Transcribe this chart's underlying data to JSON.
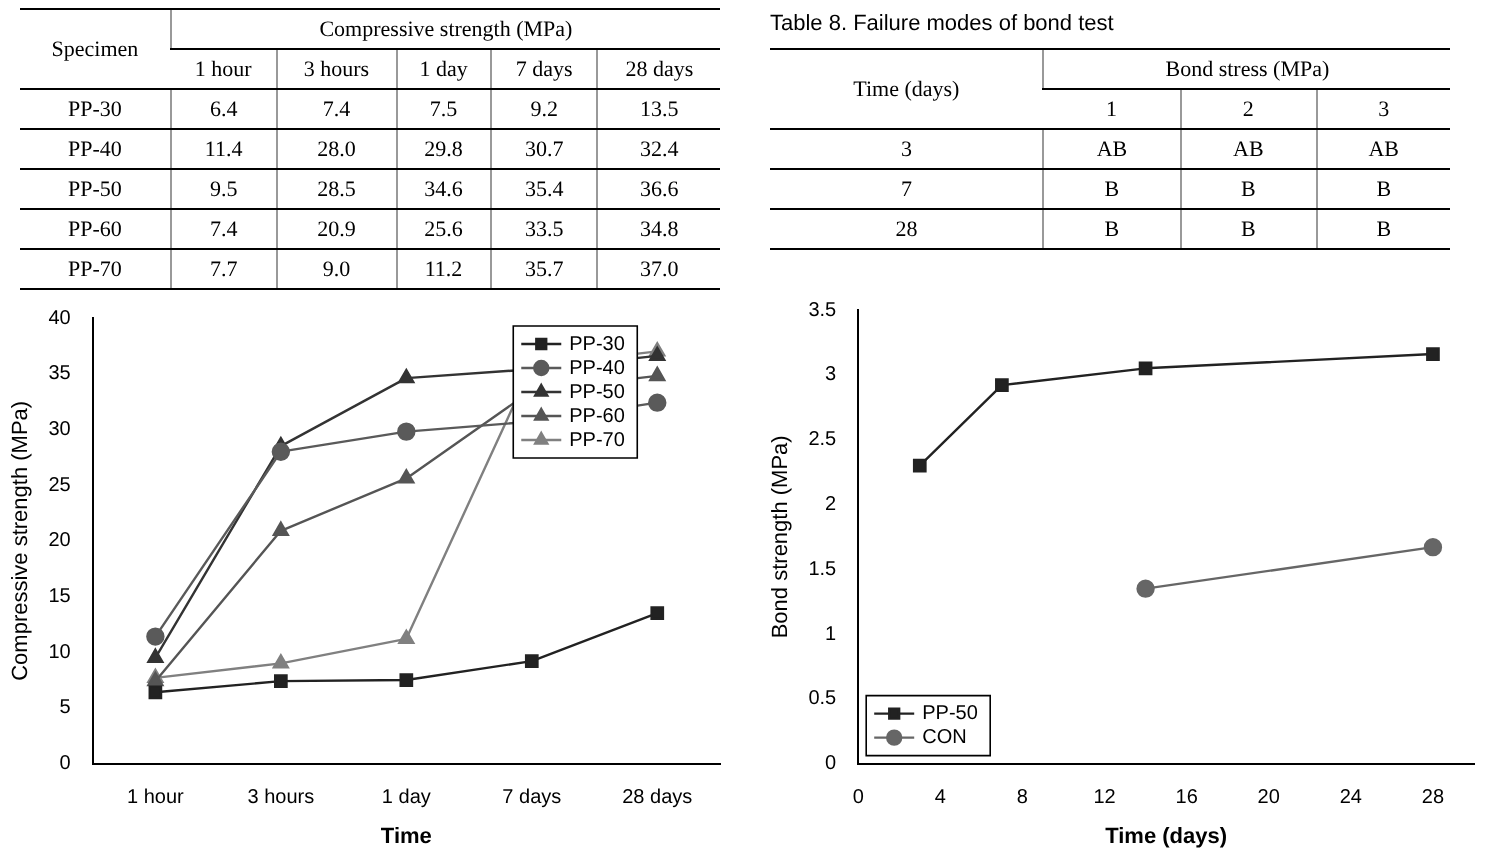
{
  "chart_data": [
    {
      "type": "other",
      "ylabel": "Specimen",
      "xlabel": "Compressive strength (MPa)",
      "categories": [
        "1 hour",
        "3 hours",
        "1 day",
        "7 days",
        "28 days"
      ],
      "y_categories": [
        "PP-30",
        "PP-40",
        "PP-50",
        "PP-60",
        "PP-70"
      ],
      "cell_labels": [
        [
          "6.4",
          "7.4",
          "7.5",
          "9.2",
          "13.5"
        ],
        [
          "11.4",
          "28.0",
          "29.8",
          "30.7",
          "32.4"
        ],
        [
          "9.5",
          "28.5",
          "34.6",
          "35.4",
          "36.6"
        ],
        [
          "7.4",
          "20.9",
          "25.6",
          "33.5",
          "34.8"
        ],
        [
          "7.7",
          "9.0",
          "11.2",
          "35.7",
          "37.0"
        ]
      ]
    },
    {
      "type": "line",
      "xlabel": "Time",
      "ylabel": "Compressive strength (MPa)",
      "categories": [
        "1 hour",
        "3 hours",
        "1 day",
        "7 days",
        "28 days"
      ],
      "series": [
        {
          "name": "PP-30",
          "color": "#222222",
          "marker": "square",
          "values": [
            6.4,
            7.4,
            7.5,
            9.2,
            13.5
          ]
        },
        {
          "name": "PP-40",
          "color": "#5a5a5a",
          "marker": "circle",
          "values": [
            11.4,
            28.0,
            29.8,
            30.7,
            32.4
          ]
        },
        {
          "name": "PP-50",
          "color": "#333333",
          "marker": "triangle",
          "values": [
            9.5,
            28.5,
            34.6,
            35.4,
            36.6
          ]
        },
        {
          "name": "PP-60",
          "color": "#555555",
          "marker": "triangle",
          "values": [
            7.4,
            20.9,
            25.6,
            33.5,
            34.8
          ]
        },
        {
          "name": "PP-70",
          "color": "#808080",
          "marker": "triangle",
          "values": [
            7.7,
            9.0,
            11.2,
            35.7,
            37.0
          ]
        }
      ],
      "ylim": [
        0,
        40
      ],
      "yticks": [
        0,
        5,
        10,
        15,
        20,
        25,
        30,
        35,
        40
      ],
      "legend": "top right"
    },
    {
      "type": "other",
      "title": "Table 8. Failure modes of bond test",
      "ylabel": "Time (days)",
      "xlabel": "Bond stress (MPa)",
      "categories": [
        "1",
        "2",
        "3"
      ],
      "y_categories": [
        "3",
        "7",
        "28"
      ],
      "cell_labels": [
        [
          "AB",
          "AB",
          "AB"
        ],
        [
          "B",
          "B",
          "B"
        ],
        [
          "B",
          "B",
          "B"
        ]
      ]
    },
    {
      "type": "line",
      "xlabel": "Time (days)",
      "ylabel": "Bond strength (MPa)",
      "series": [
        {
          "name": "PP-50",
          "color": "#222222",
          "marker": "square",
          "x": [
            3,
            7,
            14,
            28
          ],
          "values": [
            2.3,
            2.92,
            3.05,
            3.16
          ]
        },
        {
          "name": "CON",
          "color": "#666666",
          "marker": "circle",
          "x": [
            14,
            28
          ],
          "values": [
            1.35,
            1.67
          ]
        }
      ],
      "xlim": [
        0,
        30
      ],
      "xticks": [
        0,
        4,
        8,
        12,
        16,
        20,
        24,
        28
      ],
      "ylim": [
        0,
        3.5
      ],
      "yticks": [
        0,
        0.5,
        1.0,
        1.5,
        2.0,
        2.5,
        3.0,
        3.5
      ],
      "legend": "bottom left"
    }
  ]
}
